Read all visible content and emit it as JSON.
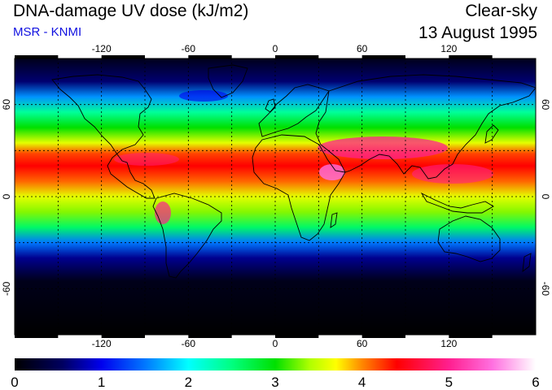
{
  "header": {
    "title": "DNA-damage UV dose (kJ/m2)",
    "source": "MSR - KNMI",
    "sky_condition": "Clear-sky",
    "date": "13 August 1995"
  },
  "map": {
    "projection": "equirectangular",
    "lon_range": [
      -180,
      180
    ],
    "lat_range": [
      -90,
      90
    ],
    "grid_spacing_deg": 30,
    "grid_style": "dotted",
    "lon_tick_labels": [
      "-120",
      "-60",
      "0",
      "60",
      "120"
    ],
    "lon_tick_values": [
      -120,
      -60,
      0,
      60,
      120
    ],
    "lat_tick_labels": [
      "60",
      "0",
      "-60"
    ],
    "lat_tick_values": [
      60,
      0,
      -60
    ],
    "field": "DNA-damage UV dose",
    "unit": "kJ/m2",
    "zonal_mean_profile": [
      {
        "lat": 90,
        "value": 0.15
      },
      {
        "lat": 75,
        "value": 0.6
      },
      {
        "lat": 65,
        "value": 1.6
      },
      {
        "lat": 55,
        "value": 2.4
      },
      {
        "lat": 45,
        "value": 3.0
      },
      {
        "lat": 35,
        "value": 3.6
      },
      {
        "lat": 28,
        "value": 4.2
      },
      {
        "lat": 20,
        "value": 4.4
      },
      {
        "lat": 10,
        "value": 4.1
      },
      {
        "lat": 0,
        "value": 3.6
      },
      {
        "lat": -10,
        "value": 3.3
      },
      {
        "lat": -20,
        "value": 2.6
      },
      {
        "lat": -30,
        "value": 1.5
      },
      {
        "lat": -40,
        "value": 0.7
      },
      {
        "lat": -55,
        "value": 0.15
      },
      {
        "lat": -90,
        "value": 0.0
      }
    ],
    "colors": {
      "grid": "#000000",
      "coastline": "#000000",
      "ticks": "#000000"
    }
  },
  "colorbar": {
    "ticks": [
      "0",
      "1",
      "2",
      "3",
      "4",
      "5",
      "6"
    ],
    "range": [
      0,
      6
    ],
    "stops": [
      {
        "v": 0.0,
        "c": "#000000"
      },
      {
        "v": 0.55,
        "c": "#000060"
      },
      {
        "v": 1.0,
        "c": "#0000ee"
      },
      {
        "v": 1.5,
        "c": "#0077ff"
      },
      {
        "v": 2.0,
        "c": "#00ffff"
      },
      {
        "v": 2.5,
        "c": "#00ff80"
      },
      {
        "v": 3.0,
        "c": "#00e000"
      },
      {
        "v": 3.4,
        "c": "#b0ff00"
      },
      {
        "v": 3.7,
        "c": "#ffff00"
      },
      {
        "v": 4.0,
        "c": "#ff8800"
      },
      {
        "v": 4.4,
        "c": "#ff0000"
      },
      {
        "v": 5.0,
        "c": "#ff1f8f"
      },
      {
        "v": 5.5,
        "c": "#ff70e0"
      },
      {
        "v": 6.0,
        "c": "#ffffff"
      }
    ]
  }
}
